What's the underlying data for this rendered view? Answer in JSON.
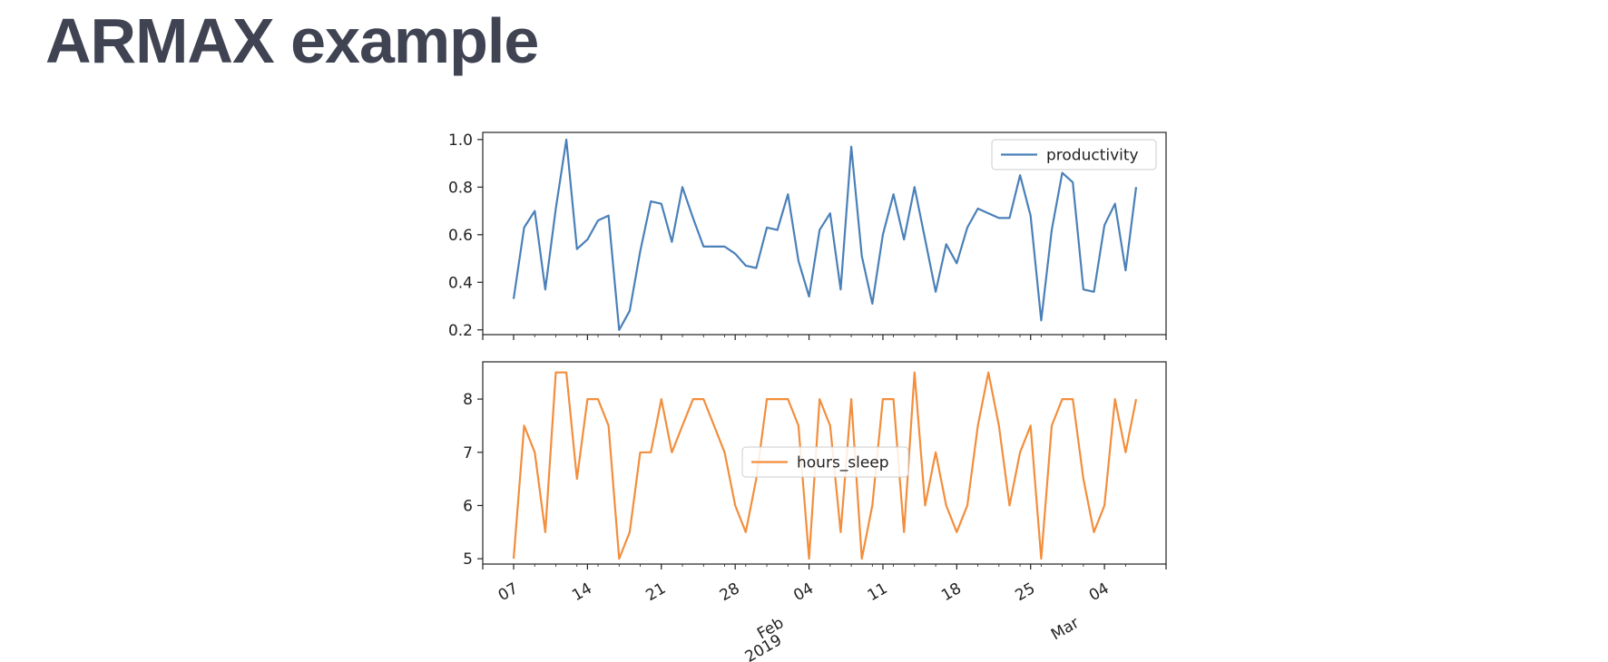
{
  "slide": {
    "title": "ARMAX example"
  },
  "chart_data": [
    {
      "type": "line",
      "series": [
        {
          "name": "productivity",
          "color": "#4a80b8",
          "values": [
            0.33,
            0.63,
            0.7,
            0.37,
            0.71,
            1.0,
            0.54,
            0.58,
            0.66,
            0.68,
            0.2,
            0.28,
            0.53,
            0.74,
            0.73,
            0.57,
            0.8,
            0.67,
            0.55,
            0.55,
            0.55,
            0.52,
            0.47,
            0.46,
            0.63,
            0.62,
            0.77,
            0.49,
            0.34,
            0.62,
            0.69,
            0.37,
            0.97,
            0.51,
            0.31,
            0.6,
            0.77,
            0.58,
            0.8,
            0.58,
            0.36,
            0.56,
            0.48,
            0.63,
            0.71,
            0.69,
            0.67,
            0.67,
            0.85,
            0.68,
            0.24,
            0.62,
            0.86,
            0.82,
            0.37,
            0.36,
            0.64,
            0.73,
            0.45,
            0.8
          ]
        }
      ],
      "ylim": [
        0.18,
        1.03
      ],
      "yticks": [
        "0.2",
        "0.4",
        "0.6",
        "0.8",
        "1.0"
      ],
      "ytick_values": [
        0.2,
        0.4,
        0.6,
        0.8,
        1.0
      ],
      "legend": "upper right",
      "grid": false
    },
    {
      "type": "line",
      "series": [
        {
          "name": "hours_sleep",
          "color": "#f28e3c",
          "values": [
            5.0,
            7.5,
            7.0,
            5.5,
            8.5,
            8.5,
            6.5,
            8.0,
            8.0,
            7.5,
            5.0,
            5.5,
            7.0,
            7.0,
            8.0,
            7.0,
            7.5,
            8.0,
            8.0,
            7.5,
            7.0,
            6.0,
            5.5,
            6.5,
            8.0,
            8.0,
            8.0,
            7.5,
            5.0,
            8.0,
            7.5,
            5.5,
            8.0,
            5.0,
            6.0,
            8.0,
            8.0,
            5.5,
            8.5,
            6.0,
            7.0,
            6.0,
            5.5,
            6.0,
            7.5,
            8.5,
            7.5,
            6.0,
            7.0,
            7.5,
            5.0,
            7.5,
            8.0,
            8.0,
            6.5,
            5.5,
            6.0,
            8.0,
            7.0,
            8.0
          ]
        }
      ],
      "ylim": [
        4.9,
        8.7
      ],
      "yticks": [
        "5",
        "6",
        "7",
        "8"
      ],
      "ytick_values": [
        5,
        6,
        7,
        8
      ],
      "legend": "center",
      "grid": false
    }
  ],
  "x_axis": {
    "type": "date",
    "start_date": "2019-01-07",
    "end_date": "2019-03-07",
    "tick_dates": [
      "2019-01-07",
      "2019-01-14",
      "2019-01-21",
      "2019-01-28",
      "2019-02-04",
      "2019-02-11",
      "2019-02-18",
      "2019-02-25",
      "2019-03-04"
    ],
    "tick_labels": [
      "07",
      "14",
      "21",
      "28",
      "04",
      "11",
      "18",
      "25",
      "04"
    ],
    "major_labels": [
      {
        "date": "2019-02-01",
        "text": [
          "Feb",
          "2019"
        ]
      },
      {
        "date": "2019-03-01",
        "text": [
          "Mar"
        ]
      }
    ]
  }
}
